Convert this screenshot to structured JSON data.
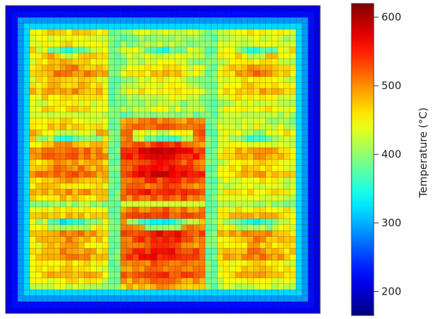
{
  "chart_data": {
    "type": "heatmap",
    "title": "",
    "colorbar": {
      "label": "Temperature (°C)",
      "range": [
        165,
        620
      ],
      "ticks": [
        200,
        300,
        400,
        500,
        600
      ],
      "tick_labels": [
        "200",
        "300",
        "400",
        "500",
        "600"
      ],
      "colormap": "jet"
    },
    "grid": true,
    "grid_rows": 52,
    "grid_cols": 52,
    "axis_ticks_shown": false,
    "layout_note_shown": "3 x 3 arrangement of hot modules separated by cooler channels, cool border",
    "approx_ranges": {
      "border": [
        190,
        280
      ],
      "channels": [
        340,
        420
      ],
      "module_edges": [
        420,
        470
      ],
      "module_cores": [
        470,
        590
      ]
    }
  },
  "colors": {
    "grid_line": "#2a2a2a",
    "frame": "#555555"
  }
}
